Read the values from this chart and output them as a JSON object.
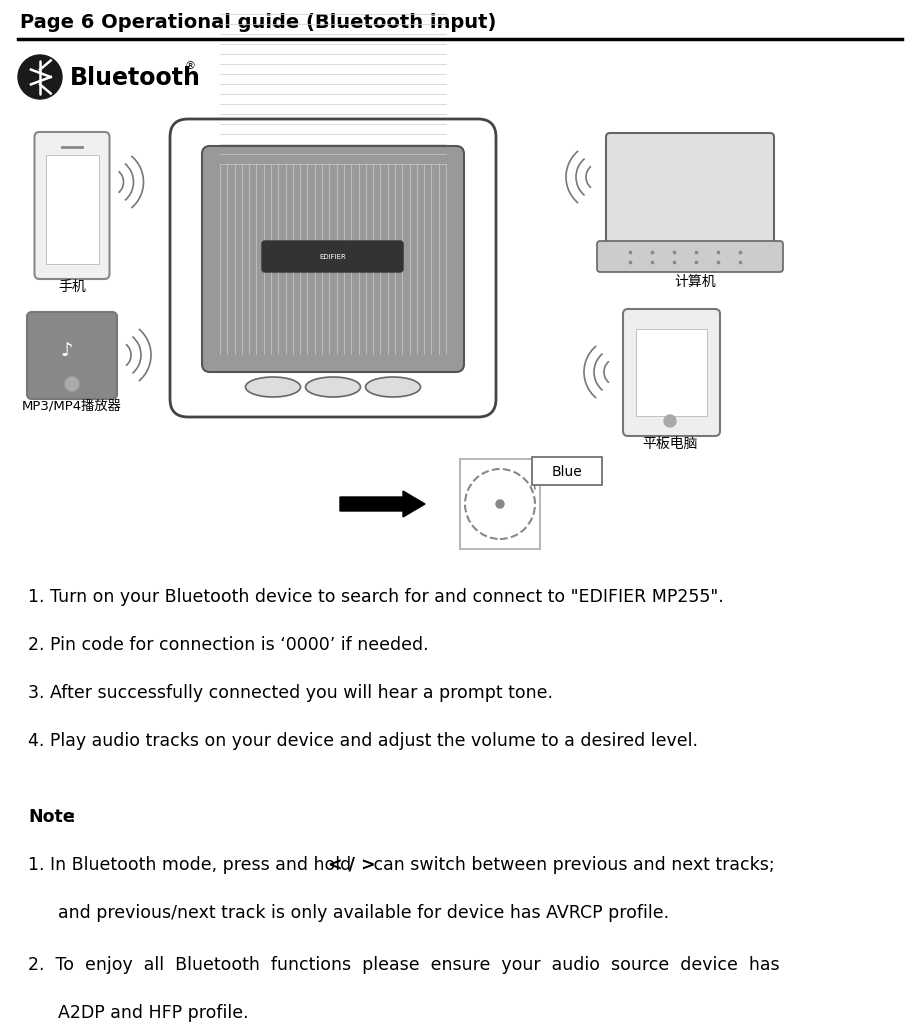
{
  "title": "Page 6 Operational guide (Bluetooth input)",
  "bg_color": "#ffffff",
  "text_color": "#000000",
  "step1": "1. Turn on your Bluetooth device to search for and connect to \"EDIFIER MP255\".",
  "step2": "2. Pin code for connection is ‘0000’ if needed.",
  "step3": "3. After successfully connected you will hear a prompt tone.",
  "step4": "4. Play audio tracks on your device and adjust the volume to a desired level.",
  "note_title": "Note",
  "note1_pre": "1. In Bluetooth mode, press and hold ",
  "note1_bold": "< / >",
  "note1_post": " can switch between previous and next tracks;",
  "note1b": "and previous/next track is only available for device has AVRCP profile.",
  "note2": "2.  To  enjoy  all  Bluetooth  functions  please  ensure  your  audio  source  device  has",
  "note2b": "A2DP and HFP profile.",
  "blue_label": "Blue",
  "label_phone": "手机",
  "label_mp3": "MP3/MP4播放器",
  "label_computer": "计算机",
  "label_tablet": "平板电脑",
  "fig_width": 9.0,
  "fig_height": 10.03,
  "dpi": 100
}
